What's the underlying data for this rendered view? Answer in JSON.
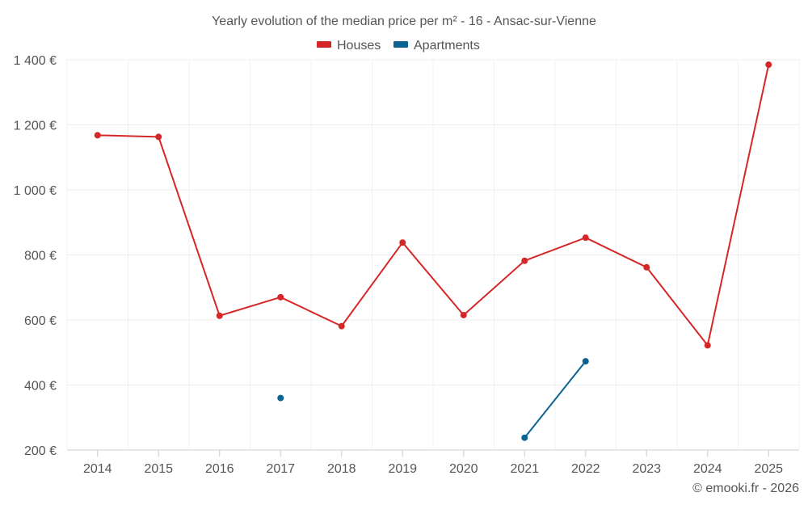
{
  "chart_data": {
    "type": "line",
    "title": "Yearly evolution of the median price per m² - 16 - Ansac-sur-Vienne",
    "categories": [
      "2014",
      "2015",
      "2016",
      "2017",
      "2018",
      "2019",
      "2020",
      "2021",
      "2022",
      "2023",
      "2024",
      "2025"
    ],
    "ylim": [
      200,
      1400
    ],
    "yticks": [
      200,
      400,
      600,
      800,
      1000,
      1200,
      1400
    ],
    "ytick_labels": [
      "200 €",
      "400 €",
      "600 €",
      "800 €",
      "1 000 €",
      "1 200 €",
      "1 400 €"
    ],
    "grid": true,
    "legend_position": "top-center",
    "series": [
      {
        "name": "Houses",
        "color": "#d62728",
        "values": [
          1168,
          1163,
          613,
          670,
          581,
          838,
          615,
          782,
          853,
          762,
          522,
          1385
        ]
      },
      {
        "name": "Apartments",
        "color": "#0b6394",
        "values": [
          null,
          null,
          null,
          360,
          null,
          null,
          null,
          238,
          473,
          null,
          null,
          null
        ]
      }
    ],
    "credit": "© emooki.fr - 2026"
  }
}
